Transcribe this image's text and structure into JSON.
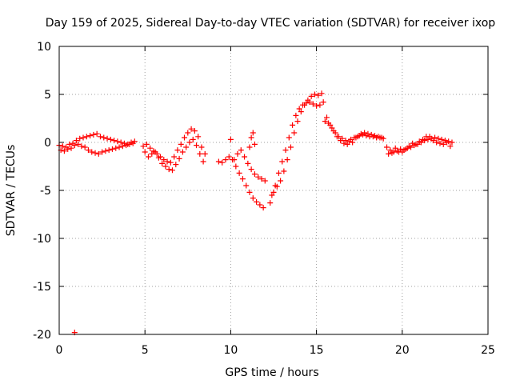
{
  "chart_data": {
    "type": "scatter",
    "title": "Day 159 of 2025, Sidereal Day-to-day VTEC variation (SDTVAR) for receiver ixop",
    "xlabel": "GPS time / hours",
    "ylabel": "SDTVAR / TECUs",
    "xlim": [
      0,
      25
    ],
    "ylim": [
      -20,
      10
    ],
    "xticks": [
      "0",
      "5",
      "10",
      "15",
      "20",
      "25"
    ],
    "yticks": [
      "10",
      "5",
      "0",
      "-5",
      "-10",
      "-15",
      "-20"
    ],
    "grid": true,
    "marker": "+",
    "color": "#ff0000",
    "series": [
      {
        "name": "SDTVAR",
        "x": [
          0.0,
          0.2,
          0.4,
          0.6,
          0.8,
          1.0,
          1.2,
          1.4,
          1.6,
          1.8,
          2.0,
          2.2,
          2.4,
          2.6,
          2.8,
          3.0,
          3.2,
          3.4,
          3.6,
          3.8,
          4.0,
          4.2,
          4.4,
          0.1,
          0.3,
          0.5,
          0.7,
          0.9,
          1.1,
          1.3,
          1.5,
          1.7,
          1.9,
          2.1,
          2.3,
          2.5,
          2.7,
          2.9,
          3.1,
          3.3,
          3.5,
          3.7,
          3.9,
          4.1,
          4.3,
          4.9,
          5.1,
          5.3,
          5.5,
          5.7,
          5.9,
          6.1,
          6.3,
          6.5,
          6.7,
          6.9,
          7.1,
          7.3,
          7.5,
          7.7,
          7.9,
          8.1,
          8.3,
          8.5,
          5.0,
          5.2,
          5.4,
          5.6,
          5.8,
          6.0,
          6.2,
          6.4,
          6.6,
          6.8,
          7.0,
          7.2,
          7.4,
          7.6,
          7.8,
          8.0,
          8.2,
          8.4,
          9.3,
          9.5,
          9.7,
          9.9,
          10.1,
          10.3,
          10.5,
          10.7,
          10.9,
          11.1,
          11.3,
          11.5,
          11.7,
          11.9,
          10.2,
          10.4,
          10.6,
          10.8,
          11.0,
          11.2,
          11.4,
          11.6,
          11.8,
          12.0,
          11.1,
          11.2,
          11.3,
          11.4,
          10.0,
          12.3,
          12.5,
          12.7,
          12.9,
          13.1,
          13.3,
          13.5,
          13.7,
          13.9,
          14.1,
          14.3,
          14.5,
          14.7,
          14.9,
          15.1,
          15.3,
          12.4,
          12.6,
          12.8,
          13.0,
          13.2,
          13.4,
          13.6,
          13.8,
          14.0,
          14.2,
          14.4,
          14.6,
          14.8,
          15.0,
          15.2,
          15.4,
          15.5,
          15.7,
          15.9,
          16.1,
          16.3,
          16.5,
          16.7,
          16.9,
          17.1,
          17.3,
          17.5,
          17.7,
          17.9,
          18.1,
          18.3,
          18.5,
          18.7,
          18.9,
          15.6,
          15.8,
          16.0,
          16.2,
          16.4,
          16.6,
          16.8,
          17.0,
          17.2,
          17.4,
          17.6,
          17.8,
          18.0,
          18.2,
          18.4,
          18.6,
          18.8,
          19.1,
          19.3,
          19.5,
          19.7,
          19.9,
          20.1,
          20.3,
          20.5,
          20.7,
          20.9,
          21.1,
          21.3,
          21.5,
          21.7,
          21.9,
          22.1,
          22.3,
          22.5,
          22.7,
          22.9,
          19.2,
          19.4,
          19.6,
          19.8,
          20.0,
          20.2,
          20.4,
          20.6,
          20.8,
          21.0,
          21.2,
          21.4,
          21.6,
          21.8,
          22.0,
          22.2,
          22.4,
          22.6,
          22.8,
          0.9
        ],
        "y": [
          -0.3,
          -0.4,
          -0.5,
          -0.2,
          -0.1,
          0.2,
          0.4,
          0.5,
          0.6,
          0.7,
          0.8,
          0.9,
          0.6,
          0.5,
          0.4,
          0.3,
          0.2,
          0.1,
          0.0,
          -0.1,
          -0.2,
          0.0,
          0.1,
          -0.8,
          -0.9,
          -0.7,
          -0.6,
          -0.3,
          -0.2,
          -0.4,
          -0.5,
          -0.8,
          -1.0,
          -1.1,
          -1.2,
          -1.0,
          -0.9,
          -0.8,
          -0.7,
          -0.6,
          -0.5,
          -0.4,
          -0.3,
          -0.2,
          -0.1,
          -0.4,
          -0.2,
          -0.6,
          -0.9,
          -1.2,
          -1.5,
          -1.8,
          -2.0,
          -2.1,
          -1.5,
          -0.8,
          -0.2,
          0.5,
          1.0,
          1.4,
          1.2,
          0.6,
          -0.5,
          -1.2,
          -1.0,
          -1.5,
          -1.2,
          -1.0,
          -1.6,
          -2.2,
          -2.5,
          -2.8,
          -2.9,
          -2.3,
          -1.7,
          -1.0,
          -0.5,
          0.0,
          0.3,
          -0.3,
          -1.2,
          -2.0,
          -2.0,
          -2.1,
          -1.8,
          -1.5,
          -1.8,
          -2.5,
          -3.2,
          -3.8,
          -4.5,
          -5.2,
          -5.8,
          -6.2,
          -6.5,
          -6.8,
          -1.8,
          -1.2,
          -0.8,
          -1.5,
          -2.2,
          -2.8,
          -3.3,
          -3.6,
          -3.8,
          -4.0,
          -0.5,
          0.5,
          1.0,
          -0.2,
          0.3,
          -6.3,
          -5.2,
          -4.6,
          -4.0,
          -3.0,
          -1.8,
          -0.5,
          1.0,
          2.2,
          3.2,
          3.9,
          4.4,
          4.8,
          5.0,
          4.9,
          5.1,
          -5.5,
          -4.5,
          -3.2,
          -2.0,
          -0.8,
          0.5,
          1.8,
          2.8,
          3.5,
          3.9,
          4.1,
          4.2,
          4.0,
          3.8,
          3.9,
          4.2,
          2.2,
          2.0,
          1.5,
          1.0,
          0.6,
          0.4,
          0.2,
          0.1,
          0.0,
          0.5,
          0.7,
          0.8,
          0.7,
          0.6,
          0.6,
          0.5,
          0.5,
          0.4,
          2.6,
          1.8,
          1.2,
          0.6,
          0.2,
          -0.1,
          -0.2,
          0.3,
          0.5,
          0.6,
          0.9,
          1.0,
          0.9,
          0.8,
          0.7,
          0.6,
          0.5,
          -0.5,
          -0.8,
          -1.0,
          -0.9,
          -0.7,
          -0.8,
          -0.6,
          -0.5,
          -0.3,
          -0.2,
          0.0,
          0.2,
          0.3,
          0.4,
          0.5,
          0.4,
          0.3,
          0.2,
          0.1,
          0.0,
          -1.2,
          -1.1,
          -0.6,
          -1.0,
          -1.0,
          -0.7,
          -0.4,
          -0.1,
          -0.2,
          0.1,
          0.3,
          0.6,
          0.6,
          0.2,
          0.0,
          -0.1,
          -0.2,
          0.0,
          -0.4,
          -19.8
        ]
      }
    ]
  }
}
